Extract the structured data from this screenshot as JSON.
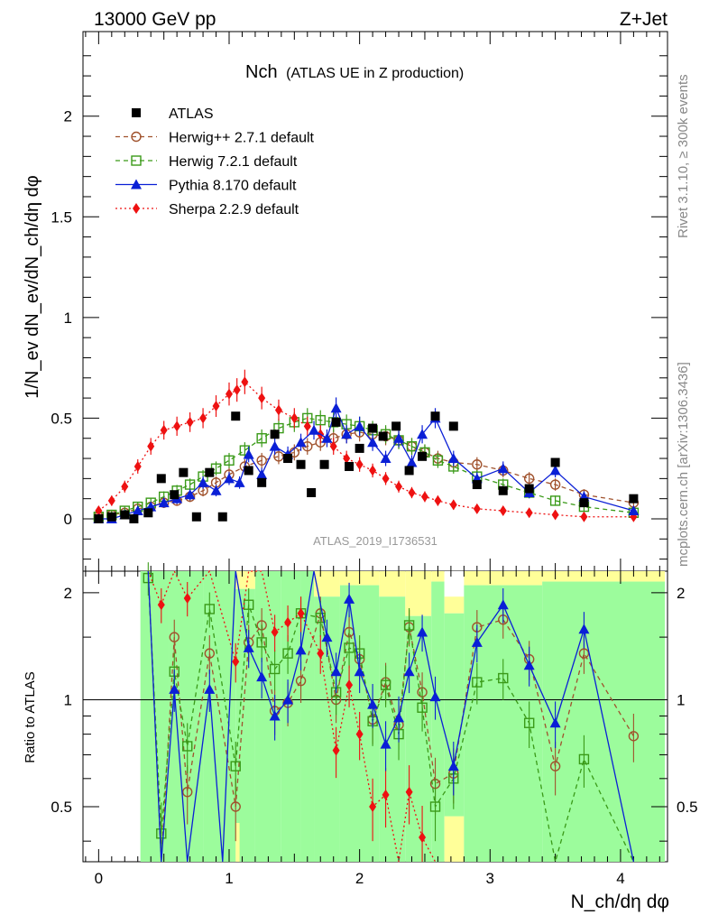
{
  "header": {
    "left": "13000 GeV pp",
    "right": "Z+Jet",
    "watermark_top": "Rivet 3.1.10, ≥ 300k events",
    "watermark_bottom": "mcplots.cern.ch [arXiv:1306.3436]",
    "analysis_id": "ATLAS_2019_I1736531"
  },
  "chart_data": {
    "type": "scatter",
    "title_main": "Nch",
    "title_sub": "(ATLAS UE in Z production)",
    "xlabel": "N_ch/dη dφ",
    "ylabel": "1/N_ev dN_ev/dN_ch/dη dφ",
    "ratio_ylabel": "Ratio to ATLAS",
    "xlim": [
      -0.12,
      4.36
    ],
    "ylim": [
      -0.26,
      2.42
    ],
    "ratio_ylim": [
      0.35,
      2.3
    ],
    "x_ticks": [
      "0",
      "1",
      "2",
      "3",
      "4"
    ],
    "y_ticks": [
      "0",
      "0.5",
      "1",
      "1.5",
      "2"
    ],
    "ratio_y_ticks": [
      "0.5",
      "1",
      "2"
    ],
    "legend": [
      {
        "name": "ATLAS",
        "color": "#000000",
        "marker": "square-filled"
      },
      {
        "name": "Herwig++ 2.7.1 default",
        "color": "#a0522d",
        "marker": "circle-open",
        "line": "dashed"
      },
      {
        "name": "Herwig 7.2.1 default",
        "color": "#3a9a18",
        "marker": "square-open",
        "line": "dashed"
      },
      {
        "name": "Pythia 8.170 default",
        "color": "#0a1fd6",
        "marker": "triangle-filled",
        "line": "solid"
      },
      {
        "name": "Sherpa 2.2.9 default",
        "color": "#ee1111",
        "marker": "diamond-filled",
        "line": "dotted"
      }
    ],
    "atlas": {
      "x": [
        0.0,
        0.1,
        0.2,
        0.27,
        0.38,
        0.48,
        0.58,
        0.65,
        0.75,
        0.85,
        0.95,
        1.05,
        1.15,
        1.25,
        1.35,
        1.45,
        1.55,
        1.63,
        1.73,
        1.82,
        1.92,
        2.0,
        2.1,
        2.18,
        2.28,
        2.38,
        2.48,
        2.58,
        2.72,
        2.9,
        3.1,
        3.3,
        3.5,
        3.72,
        4.1
      ],
      "y": [
        0.0,
        0.01,
        0.02,
        0.0,
        0.03,
        0.2,
        0.12,
        0.23,
        0.01,
        0.23,
        0.01,
        0.51,
        0.24,
        0.18,
        0.42,
        0.3,
        0.27,
        0.13,
        0.27,
        0.48,
        0.26,
        0.35,
        0.45,
        0.41,
        0.46,
        0.24,
        0.31,
        0.51,
        0.46,
        0.17,
        0.14,
        0.15,
        0.28,
        0.08,
        0.1
      ]
    },
    "herwigpp": {
      "x": [
        0.0,
        0.1,
        0.2,
        0.3,
        0.4,
        0.5,
        0.6,
        0.7,
        0.8,
        0.9,
        1.0,
        1.12,
        1.25,
        1.38,
        1.5,
        1.6,
        1.7,
        1.8,
        1.9,
        2.0,
        2.1,
        2.2,
        2.3,
        2.4,
        2.5,
        2.6,
        2.72,
        2.9,
        3.1,
        3.3,
        3.5,
        3.72,
        4.1
      ],
      "y": [
        0.01,
        0.02,
        0.03,
        0.05,
        0.06,
        0.08,
        0.09,
        0.11,
        0.14,
        0.18,
        0.22,
        0.26,
        0.29,
        0.31,
        0.33,
        0.36,
        0.38,
        0.4,
        0.42,
        0.43,
        0.42,
        0.41,
        0.39,
        0.36,
        0.33,
        0.3,
        0.28,
        0.27,
        0.24,
        0.2,
        0.17,
        0.12,
        0.08
      ]
    },
    "herwig7": {
      "x": [
        0.0,
        0.1,
        0.2,
        0.3,
        0.4,
        0.5,
        0.6,
        0.7,
        0.8,
        0.9,
        1.0,
        1.12,
        1.25,
        1.38,
        1.5,
        1.6,
        1.7,
        1.8,
        1.9,
        2.0,
        2.1,
        2.2,
        2.3,
        2.4,
        2.5,
        2.6,
        2.72,
        2.9,
        3.1,
        3.3,
        3.5,
        3.72,
        4.1
      ],
      "y": [
        0.01,
        0.02,
        0.04,
        0.06,
        0.08,
        0.11,
        0.14,
        0.17,
        0.21,
        0.25,
        0.29,
        0.34,
        0.4,
        0.45,
        0.48,
        0.5,
        0.49,
        0.48,
        0.47,
        0.46,
        0.44,
        0.42,
        0.39,
        0.36,
        0.33,
        0.29,
        0.26,
        0.21,
        0.17,
        0.13,
        0.09,
        0.06,
        0.03
      ]
    },
    "pythia": {
      "x": [
        0.0,
        0.1,
        0.2,
        0.3,
        0.4,
        0.5,
        0.6,
        0.7,
        0.8,
        0.9,
        1.0,
        1.08,
        1.15,
        1.25,
        1.35,
        1.45,
        1.55,
        1.65,
        1.75,
        1.82,
        1.9,
        2.0,
        2.1,
        2.2,
        2.3,
        2.4,
        2.48,
        2.58,
        2.72,
        2.9,
        3.1,
        3.3,
        3.5,
        3.72,
        4.1
      ],
      "y": [
        0.0,
        0.0,
        0.02,
        0.04,
        0.06,
        0.08,
        0.1,
        0.12,
        0.18,
        0.14,
        0.2,
        0.18,
        0.32,
        0.22,
        0.36,
        0.32,
        0.38,
        0.44,
        0.4,
        0.55,
        0.42,
        0.46,
        0.38,
        0.3,
        0.4,
        0.28,
        0.42,
        0.5,
        0.3,
        0.2,
        0.25,
        0.13,
        0.24,
        0.11,
        0.04
      ]
    },
    "sherpa": {
      "x": [
        0.0,
        0.1,
        0.2,
        0.3,
        0.4,
        0.5,
        0.6,
        0.7,
        0.8,
        0.9,
        1.0,
        1.06,
        1.12,
        1.25,
        1.38,
        1.5,
        1.6,
        1.7,
        1.8,
        1.9,
        2.0,
        2.1,
        2.2,
        2.3,
        2.4,
        2.5,
        2.6,
        2.72,
        2.9,
        3.1,
        3.3,
        3.5,
        3.72,
        4.1
      ],
      "y": [
        0.04,
        0.09,
        0.16,
        0.26,
        0.36,
        0.44,
        0.46,
        0.48,
        0.5,
        0.56,
        0.62,
        0.64,
        0.68,
        0.6,
        0.54,
        0.5,
        0.46,
        0.42,
        0.36,
        0.3,
        0.27,
        0.24,
        0.2,
        0.16,
        0.13,
        0.11,
        0.09,
        0.07,
        0.05,
        0.04,
        0.03,
        0.02,
        0.01,
        0.01
      ]
    },
    "ratio": {
      "herwigpp": [
        [
          0.38,
          2.3
        ],
        [
          0.48,
          0.2
        ],
        [
          0.58,
          1.5
        ],
        [
          0.68,
          0.55
        ],
        [
          0.85,
          1.35
        ],
        [
          1.05,
          0.5
        ],
        [
          1.15,
          1.45
        ],
        [
          1.25,
          1.62
        ],
        [
          1.35,
          0.93
        ],
        [
          1.45,
          0.98
        ],
        [
          1.55,
          1.13
        ],
        [
          1.7,
          1.75
        ],
        [
          1.82,
          1.0
        ],
        [
          1.92,
          1.55
        ],
        [
          2.0,
          1.3
        ],
        [
          2.1,
          0.88
        ],
        [
          2.2,
          1.12
        ],
        [
          2.3,
          0.85
        ],
        [
          2.38,
          1.6
        ],
        [
          2.48,
          1.05
        ],
        [
          2.58,
          0.58
        ],
        [
          2.72,
          0.62
        ],
        [
          2.9,
          1.6
        ],
        [
          3.1,
          1.68
        ],
        [
          3.3,
          1.3
        ],
        [
          3.5,
          0.65
        ],
        [
          3.72,
          1.35
        ],
        [
          4.1,
          0.79
        ]
      ],
      "herwig7": [
        [
          0.38,
          2.2
        ],
        [
          0.48,
          0.42
        ],
        [
          0.58,
          1.2
        ],
        [
          0.68,
          0.74
        ],
        [
          0.85,
          1.8
        ],
        [
          1.05,
          0.65
        ],
        [
          1.15,
          1.85
        ],
        [
          1.25,
          1.45
        ],
        [
          1.35,
          1.22
        ],
        [
          1.45,
          1.35
        ],
        [
          1.55,
          1.75
        ],
        [
          1.7,
          1.7
        ],
        [
          1.82,
          1.05
        ],
        [
          1.92,
          1.4
        ],
        [
          2.0,
          1.35
        ],
        [
          2.1,
          0.87
        ],
        [
          2.2,
          1.1
        ],
        [
          2.3,
          0.8
        ],
        [
          2.38,
          1.62
        ],
        [
          2.48,
          0.95
        ],
        [
          2.58,
          0.5
        ],
        [
          2.72,
          0.6
        ],
        [
          2.9,
          1.12
        ],
        [
          3.1,
          1.15
        ],
        [
          3.3,
          0.86
        ],
        [
          3.5,
          0.35
        ],
        [
          3.72,
          0.68
        ],
        [
          4.1,
          0.3
        ]
      ],
      "pythia": [
        [
          0.38,
          2.3
        ],
        [
          0.48,
          0.3
        ],
        [
          0.58,
          1.07
        ],
        [
          0.68,
          0.35
        ],
        [
          0.85,
          1.07
        ],
        [
          0.95,
          0.3
        ],
        [
          1.05,
          2.3
        ],
        [
          1.15,
          1.4
        ],
        [
          1.25,
          1.16
        ],
        [
          1.35,
          0.9
        ],
        [
          1.45,
          1.0
        ],
        [
          1.55,
          1.38
        ],
        [
          1.65,
          2.3
        ],
        [
          1.75,
          1.5
        ],
        [
          1.82,
          1.2
        ],
        [
          1.92,
          1.92
        ],
        [
          2.0,
          1.2
        ],
        [
          2.1,
          0.97
        ],
        [
          2.2,
          0.75
        ],
        [
          2.3,
          0.89
        ],
        [
          2.38,
          1.2
        ],
        [
          2.48,
          1.55
        ],
        [
          2.58,
          1.02
        ],
        [
          2.72,
          0.65
        ],
        [
          2.9,
          1.45
        ],
        [
          3.1,
          1.85
        ],
        [
          3.3,
          1.25
        ],
        [
          3.5,
          0.86
        ],
        [
          3.72,
          1.58
        ],
        [
          4.1,
          0.35
        ]
      ],
      "sherpa": [
        [
          0.38,
          2.3
        ],
        [
          0.48,
          1.85
        ],
        [
          0.58,
          2.3
        ],
        [
          0.68,
          1.93
        ],
        [
          0.85,
          2.3
        ],
        [
          1.05,
          1.28
        ],
        [
          1.15,
          2.3
        ],
        [
          1.25,
          2.3
        ],
        [
          1.35,
          1.55
        ],
        [
          1.45,
          1.65
        ],
        [
          1.55,
          1.75
        ],
        [
          1.7,
          1.35
        ],
        [
          1.82,
          0.72
        ],
        [
          1.92,
          1.1
        ],
        [
          2.0,
          0.8
        ],
        [
          2.1,
          0.5
        ],
        [
          2.2,
          0.54
        ],
        [
          2.3,
          0.35
        ],
        [
          2.38,
          0.55
        ],
        [
          2.48,
          0.41
        ],
        [
          2.58,
          0.35
        ]
      ]
    }
  }
}
